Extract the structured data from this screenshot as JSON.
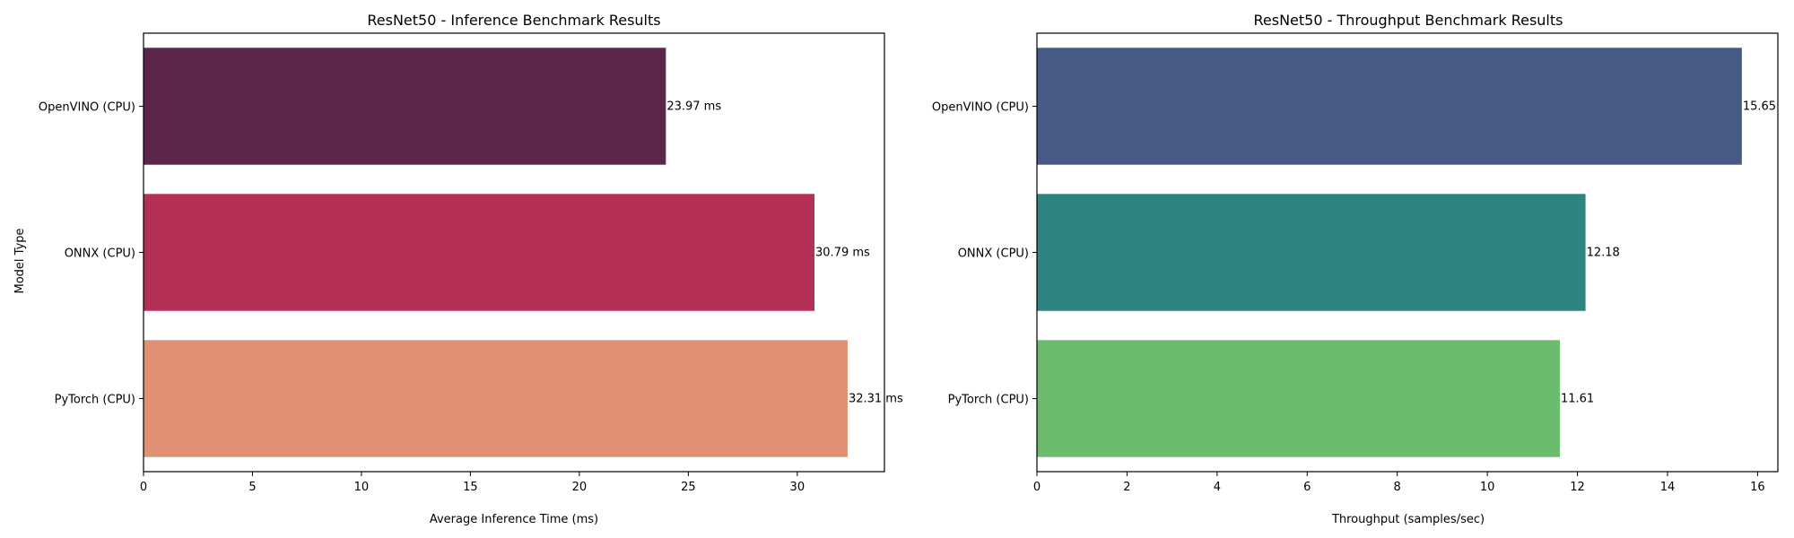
{
  "chart_data": [
    {
      "type": "bar",
      "orientation": "horizontal",
      "title": "ResNet50 - Inference Benchmark Results",
      "xlabel": "Average Inference Time (ms)",
      "ylabel": "Model Type",
      "categories": [
        "OpenVINO (CPU)",
        "ONNX (CPU)",
        "PyTorch (CPU)"
      ],
      "values": [
        23.97,
        30.79,
        32.31
      ],
      "value_labels": [
        "23.97 ms",
        "30.79 ms",
        "32.31 ms"
      ],
      "colors": [
        "#5c264c",
        "#b43057",
        "#e19073"
      ],
      "xlim": [
        0,
        34
      ],
      "xticks": [
        0,
        5,
        10,
        15,
        20,
        25,
        30
      ],
      "grid": false,
      "legend": "none"
    },
    {
      "type": "bar",
      "orientation": "horizontal",
      "title": "ResNet50 - Throughput Benchmark Results",
      "xlabel": "Throughput (samples/sec)",
      "ylabel": "",
      "categories": [
        "OpenVINO (CPU)",
        "ONNX (CPU)",
        "PyTorch (CPU)"
      ],
      "values": [
        15.65,
        12.18,
        11.61
      ],
      "value_labels": [
        "15.65",
        "12.18",
        "11.61"
      ],
      "colors": [
        "#465a85",
        "#2e8480",
        "#6bbd6d"
      ],
      "xlim": [
        0,
        16.45
      ],
      "xticks": [
        0,
        2,
        4,
        6,
        8,
        10,
        12,
        14,
        16
      ],
      "grid": false,
      "legend": "none"
    }
  ]
}
